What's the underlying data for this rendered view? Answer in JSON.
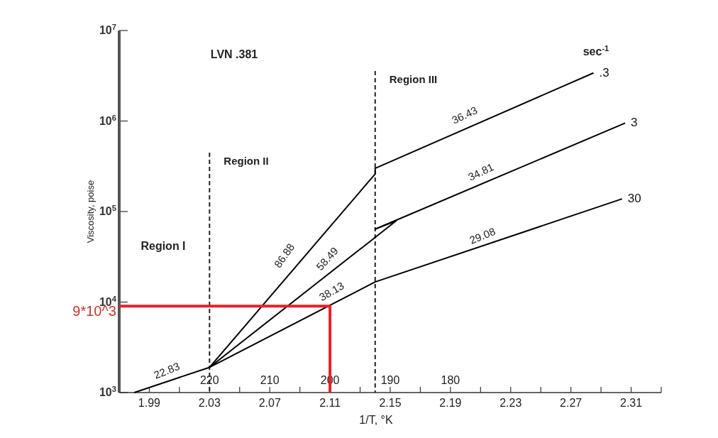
{
  "chart_data": {
    "type": "line",
    "xlabel": "1/T, °K",
    "ylabel": "Viscosity, poise",
    "log": "y",
    "legend": false,
    "grid": false,
    "marker": "none",
    "line_style": "solid",
    "xlim": [
      1.97,
      2.33
    ],
    "ylim": [
      1000,
      10000000
    ],
    "xticks": [
      1.99,
      {
        "value": 2.01,
        "label": null
      },
      2.03,
      {
        "value": 2.05,
        "label": null
      },
      2.07,
      {
        "value": 2.09,
        "label": null
      },
      2.11,
      {
        "value": 2.13,
        "label": null
      },
      2.15,
      {
        "value": 2.17,
        "label": null
      },
      2.19,
      {
        "value": 2.21,
        "label": null
      },
      2.23,
      {
        "value": 2.25,
        "label": null
      },
      2.27,
      {
        "value": 2.29,
        "label": null
      },
      2.31,
      {
        "value": 2.33,
        "label": null
      }
    ],
    "yticks": [
      {
        "value": 1000,
        "label": "10$^{3}$"
      },
      {
        "value": 10000,
        "label": "10$^{4}$"
      },
      {
        "value": 100000,
        "label": "10$^{5}$"
      },
      {
        "value": 1000000,
        "label": "10$^{6}$"
      },
      {
        "value": 10000000,
        "label": "10$^{7}$"
      }
    ],
    "x2lim": [
      235,
      145
    ],
    "x2ticks": [
      220,
      210,
      200,
      190,
      180
    ],
    "series": [
      {
        "name": ".3",
        "color": "#000000",
        "x": [
          2.03,
          2.14,
          2.14,
          2.285
        ],
        "values": [
          1900,
          260000,
          300000,
          3400000
        ]
      },
      {
        "name": "3",
        "color": "#000000",
        "x": [
          2.03,
          2.154,
          2.14,
          2.306
        ],
        "values": [
          1900,
          79000,
          64000,
          950000
        ]
      },
      {
        "name": "30",
        "color": "#000000",
        "x": [
          1.98,
          2.03,
          2.14,
          2.304
        ],
        "values": [
          1000,
          1900,
          16700,
          138000
        ]
      },
      {
        "color": "#e8202a",
        "x": [
          1.97,
          2.11,
          2.11
        ],
        "values": [
          9000,
          9000,
          1000
        ]
      }
    ],
    "ref_lines": [
      {
        "axis": "x",
        "value": 2.03,
        "label": "Region II",
        "line_style": "dashed"
      },
      {
        "axis": "x",
        "value": 2.14,
        "label": "Region III",
        "line_style": "dashed"
      }
    ],
    "annotations": [
      "LVN .381",
      "Region I",
      "sec$^{-1}$",
      "22.83",
      "86.88",
      "58.49",
      "38.13",
      "36.43",
      "34.81",
      "29.08",
      {
        "text": "9*10^3",
        "x": 1.97,
        "y": 9000
      }
    ]
  }
}
